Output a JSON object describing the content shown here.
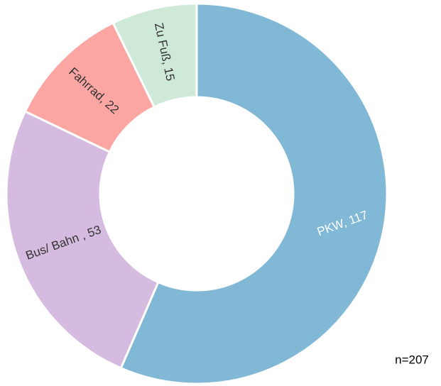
{
  "chart_data": {
    "type": "donut",
    "value_labels": [
      "PKW, 117",
      "Bus/ Bahn , 53",
      "Fahrrad, 22",
      "Zu Fuß, 15"
    ],
    "values": [
      117,
      53,
      22,
      15
    ],
    "colors": [
      "#80b8d5",
      "#d5bbdf",
      "#fca6a4",
      "#cfe9d8"
    ],
    "annotation": "n=207"
  }
}
